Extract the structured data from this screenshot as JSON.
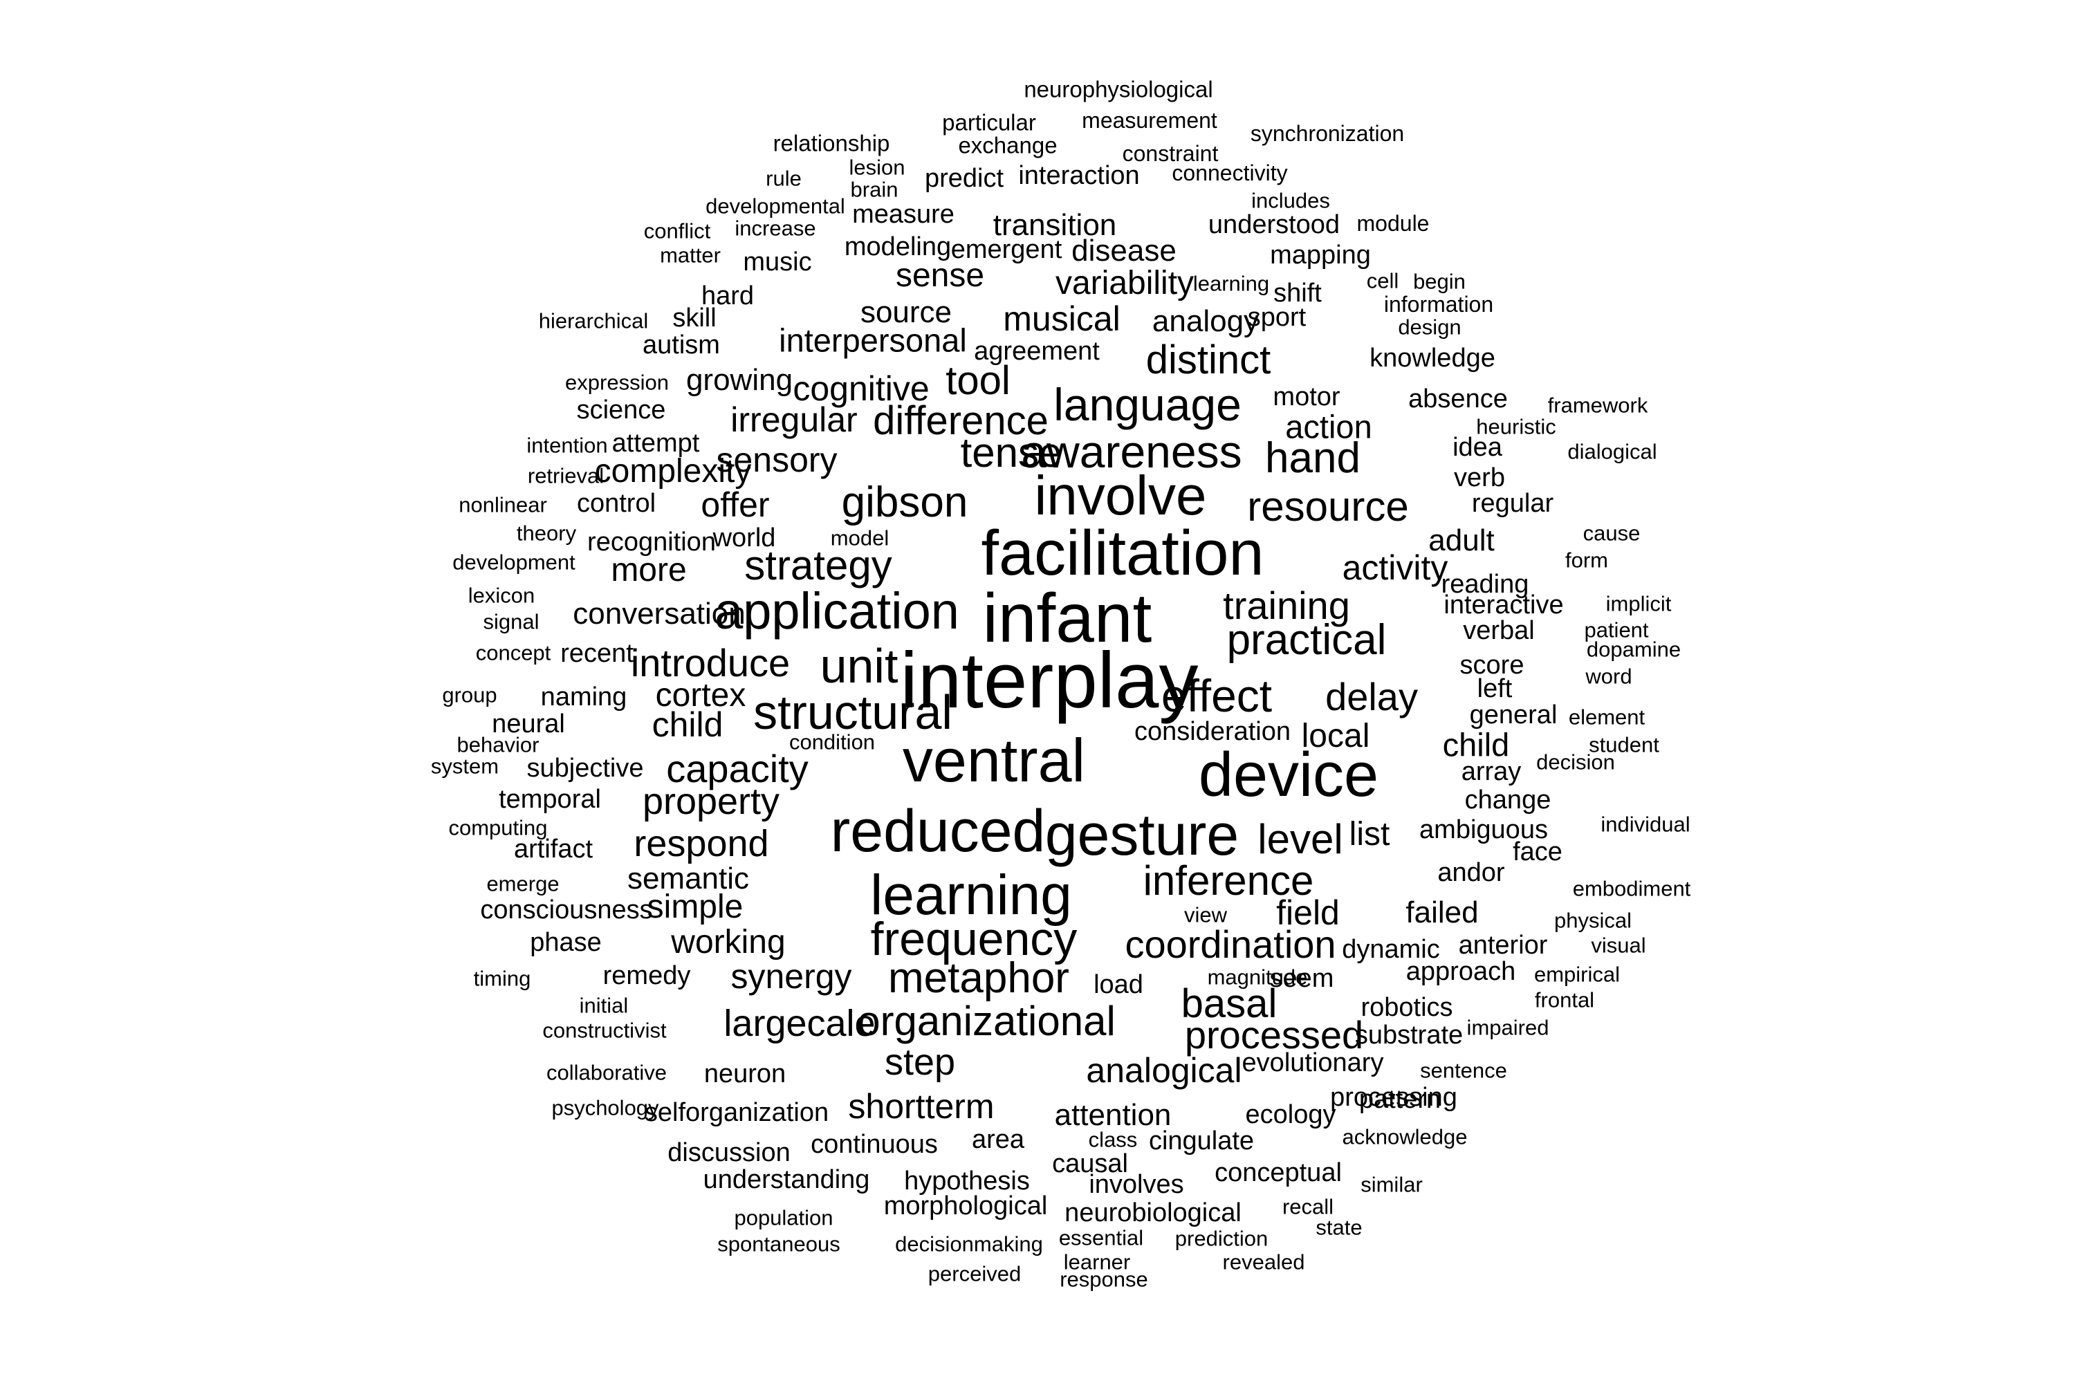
{
  "cloud": {
    "color": "#000000",
    "words": [
      "neurophysiological",
      "particular",
      "measurement",
      "relationship",
      "exchange",
      "constraint",
      "synchronization",
      "lesion",
      "predict",
      "interaction",
      "connectivity",
      "rule",
      "brain",
      "developmental",
      "includes",
      "measure",
      "increase",
      "conflict",
      "transition",
      "understood",
      "module",
      "modeling",
      "emergent",
      "disease",
      "mapping",
      "matter",
      "music",
      "sense",
      "variability",
      "learning",
      "cell",
      "begin",
      "shift",
      "hard",
      "information",
      "hierarchical",
      "skill",
      "source",
      "musical",
      "analogy",
      "sport",
      "design",
      "autism",
      "interpersonal",
      "agreement",
      "distinct",
      "knowledge",
      "expression",
      "growing",
      "cognitive",
      "tool",
      "motor",
      "absence",
      "framework",
      "science",
      "language",
      "irregular",
      "difference",
      "action",
      "heuristic",
      "intention",
      "attempt",
      "tense",
      "awareness",
      "idea",
      "dialogical",
      "sensory",
      "hand",
      "retrieval",
      "complexity",
      "verb",
      "involve",
      "resource",
      "nonlinear",
      "control",
      "offer",
      "gibson",
      "regular",
      "theory",
      "cause",
      "recognition",
      "world",
      "model",
      "adult",
      "facilitation",
      "development",
      "form",
      "more",
      "strategy",
      "activity",
      "reading",
      "lexicon",
      "implicit",
      "training",
      "interactive",
      "conversation",
      "application",
      "signal",
      "infant",
      "patient",
      "verbal",
      "concept",
      "recent",
      "practical",
      "dopamine",
      "score",
      "introduce",
      "unit",
      "word",
      "interplay",
      "group",
      "naming",
      "cortex",
      "effect",
      "left",
      "delay",
      "general",
      "element",
      "neural",
      "structural",
      "child",
      "behavior",
      "consideration",
      "local",
      "condition",
      "child",
      "student",
      "ventral",
      "system",
      "subjective",
      "capacity",
      "decision",
      "array",
      "device",
      "temporal",
      "property",
      "change",
      "computing",
      "individual",
      "ambiguous",
      "list",
      "artifact",
      "respond",
      "reduced",
      "gesture",
      "level",
      "face",
      "semantic",
      "andor",
      "emerge",
      "inference",
      "embodiment",
      "learning",
      "consciousness",
      "simple",
      "view",
      "field",
      "failed",
      "physical",
      "phase",
      "working",
      "frequency",
      "coordination",
      "dynamic",
      "anterior",
      "visual",
      "timing",
      "remedy",
      "synergy",
      "metaphor",
      "approach",
      "empirical",
      "seem",
      "initial",
      "magnitude",
      "load",
      "basal",
      "frontal",
      "robotics",
      "constructivist",
      "largecale",
      "organizational",
      "impaired",
      "processed",
      "substrate",
      "step",
      "evolutionary",
      "collaborative",
      "neuron",
      "analogical",
      "sentence",
      "pattern",
      "psychology",
      "selforganization",
      "shortterm",
      "ecology",
      "processing",
      "attention",
      "acknowledge",
      "class",
      "cingulate",
      "discussion",
      "continuous",
      "area",
      "causal",
      "understanding",
      "conceptual",
      "similar",
      "hypothesis",
      "involves",
      "morphological",
      "recall",
      "population",
      "neurobiological",
      "state",
      "essential",
      "spontaneous",
      "decisionmaking",
      "prediction",
      "learner",
      "revealed",
      "perceived",
      "response"
    ]
  }
}
